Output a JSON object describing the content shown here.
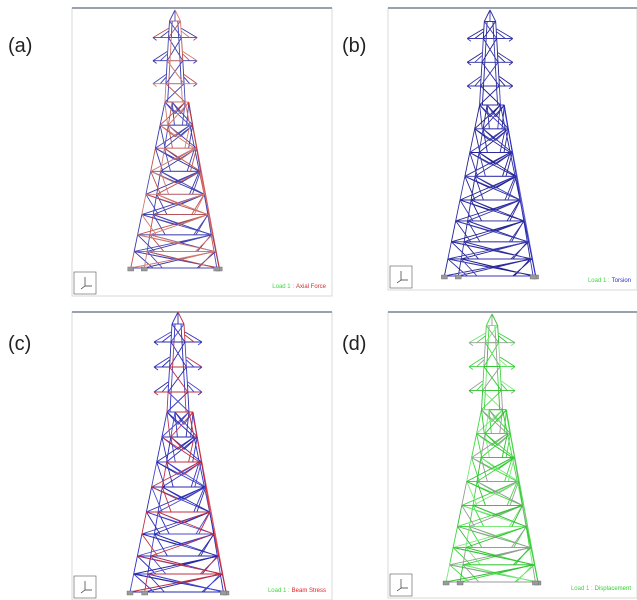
{
  "panels": [
    {
      "label": "(a)",
      "load": "Load 1 :",
      "result": "Axial Force"
    },
    {
      "label": "(b)",
      "load": "Load 1 :",
      "result": "Torsion"
    },
    {
      "label": "(c)",
      "load": "Load 1 :",
      "result": "Beam Stress"
    },
    {
      "label": "(d)",
      "load": "Load 1 :",
      "result": "Displacement"
    }
  ]
}
